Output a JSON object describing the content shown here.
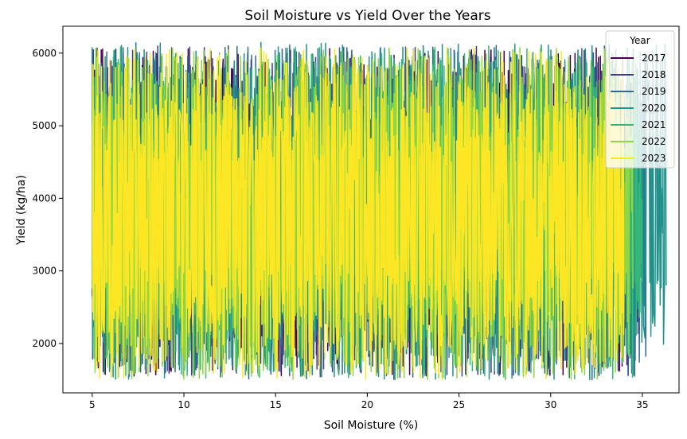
{
  "chart_data": {
    "type": "line",
    "title": "Soil Moisture vs Yield Over the Years",
    "xlabel": "Soil Moisture (%)",
    "ylabel": "Yield (kg/ha)",
    "xlim": [
      3.4,
      37.0
    ],
    "ylim": [
      1320,
      6370
    ],
    "x_ticks": [
      5,
      10,
      15,
      20,
      25,
      30,
      35
    ],
    "y_ticks": [
      2000,
      3000,
      4000,
      5000,
      6000
    ],
    "grid": false,
    "legend": {
      "title": "Year",
      "placement": "top-right"
    },
    "series": [
      {
        "name": "2017",
        "color": "#440154",
        "x_range": [
          5.0,
          34.5
        ],
        "y_range": [
          1550,
          6080
        ]
      },
      {
        "name": "2018",
        "color": "#443983",
        "x_range": [
          5.0,
          34.8
        ],
        "y_range": [
          1550,
          6100
        ]
      },
      {
        "name": "2019",
        "color": "#31688e",
        "x_range": [
          5.0,
          35.2
        ],
        "y_range": [
          1500,
          6120
        ]
      },
      {
        "name": "2020",
        "color": "#21918c",
        "x_range": [
          5.0,
          36.3
        ],
        "y_range": [
          1500,
          6150
        ]
      },
      {
        "name": "2021",
        "color": "#35b779",
        "x_range": [
          5.0,
          35.0
        ],
        "y_range": [
          1500,
          6100
        ]
      },
      {
        "name": "2022",
        "color": "#90d743",
        "x_range": [
          5.0,
          34.5
        ],
        "y_range": [
          1500,
          6080
        ]
      },
      {
        "name": "2023",
        "color": "#fde725",
        "x_range": [
          5.0,
          34.0
        ],
        "y_range": [
          1500,
          6080
        ]
      }
    ]
  }
}
